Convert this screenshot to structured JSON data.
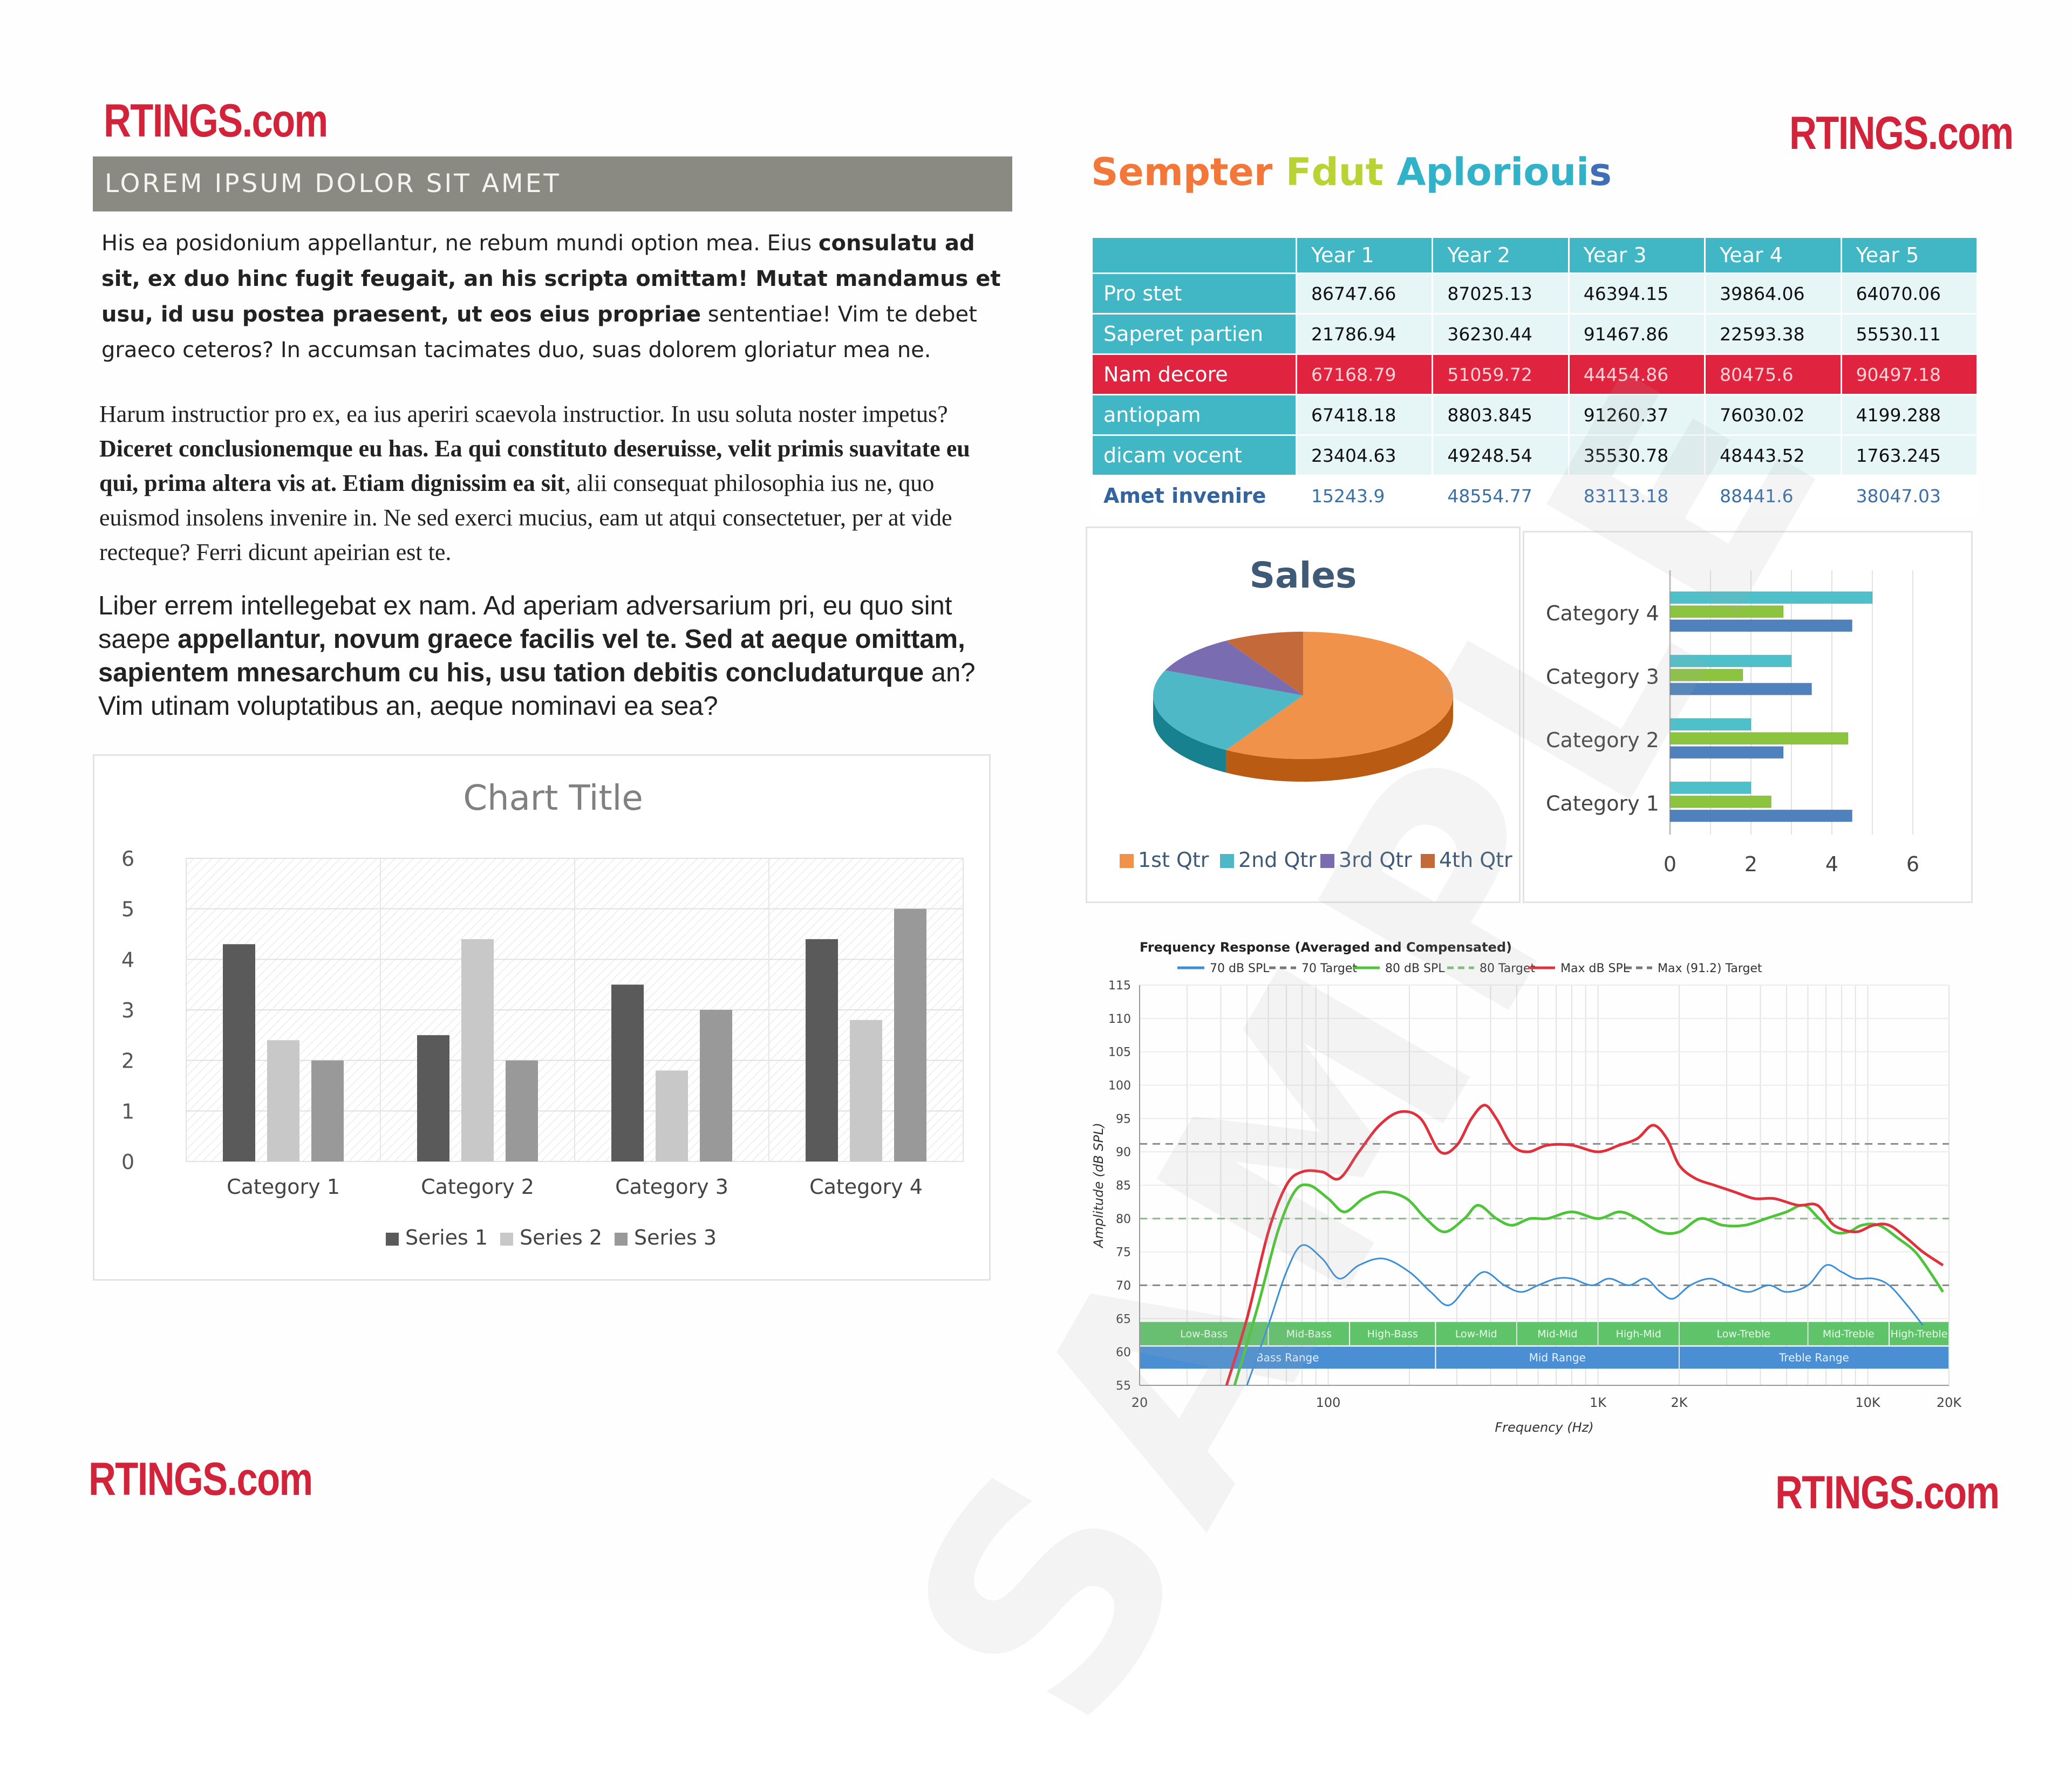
{
  "logos": {
    "text": "RTINGS.com"
  },
  "left": {
    "banner": "LOREM IPSUM DOLOR SIT AMET",
    "p1": [
      {
        "t": "His ea posidonium appellantur, ne rebum mundi option mea. Eius ",
        "b": false
      },
      {
        "t": "consulatu ad sit, ex duo hinc fugit feugait, an his scripta omittam! Mutat mandamus et usu, id usu postea praesent, ut eos eius propriae",
        "b": true
      },
      {
        "t": " sententiae! Vim te debet graeco ceteros? In accumsan tacimates duo, suas dolorem gloriatur mea ne.",
        "b": false
      }
    ],
    "p2": [
      {
        "t": "Harum instructior pro ex, ea ius aperiri scaevola instructior. In usu soluta noster impetus? ",
        "b": false
      },
      {
        "t": "Diceret conclusionemque eu has. Ea qui constituto deseruisse, velit primis suavitate eu qui, prima altera vis at. Etiam dignissim ea sit",
        "b": true
      },
      {
        "t": ", alii consequat philosophia ius ne, quo euismod insolens invenire in. Ne sed exerci mucius, eam ut atqui consectetuer, per at vide recteque? Ferri dicunt apeirian est te.",
        "b": false
      }
    ],
    "p3": [
      {
        "t": "Liber errem intellegebat ex nam. Ad aperiam adversarium pri, eu quo sint saepe ",
        "b": false
      },
      {
        "t": "appellantur, novum graece facilis vel te. Sed at aeque omittam, sapientem mnesarchum cu his, usu tation debitis concludaturque",
        "b": true
      },
      {
        "t": " an? Vim utinam voluptatibus an, aeque nominavi ea sea?",
        "b": false
      }
    ]
  },
  "watermark": "SAMPLE",
  "right": {
    "heading": [
      "Sempter ",
      "Fdut ",
      "Aplorioui",
      "s"
    ],
    "heading_colors": [
      "#f4773a",
      "#b9d234",
      "#32b2c9",
      "#3f6fb7"
    ],
    "table": {
      "columns": [
        "Year 1",
        "Year 2",
        "Year 3",
        "Year 4",
        "Year 5"
      ],
      "rows": [
        {
          "label": "Pro stet",
          "values": [
            "86747.66",
            "87025.13",
            "46394.15",
            "39864.06",
            "64070.06"
          ]
        },
        {
          "label": "Saperet partien",
          "values": [
            "21786.94",
            "36230.44",
            "91467.86",
            "22593.38",
            "55530.11"
          ]
        },
        {
          "label": "Nam decore",
          "values": [
            "67168.79",
            "51059.72",
            "44454.86",
            "80475.6",
            "90497.18"
          ]
        },
        {
          "label": "antiopam",
          "values": [
            "67418.18",
            "8803.845",
            "91260.37",
            "76030.02",
            "4199.288"
          ]
        },
        {
          "label": "dicam vocent",
          "values": [
            "23404.63",
            "49248.54",
            "35530.78",
            "48443.52",
            "1763.245"
          ]
        },
        {
          "label": "Amet invenire",
          "values": [
            "15243.9",
            "48554.77",
            "83113.18",
            "88441.6",
            "38047.03"
          ]
        }
      ]
    }
  },
  "chart_data": [
    {
      "type": "bar",
      "title": "Chart Title",
      "categories": [
        "Category 1",
        "Category 2",
        "Category 3",
        "Category 4"
      ],
      "series": [
        {
          "name": "Series 1",
          "values": [
            4.3,
            2.5,
            3.5,
            4.4
          ],
          "color": "#5a5a5a"
        },
        {
          "name": "Series 2",
          "values": [
            2.4,
            4.4,
            1.8,
            2.8
          ],
          "color": "#c8c8c8"
        },
        {
          "name": "Series 3",
          "values": [
            2.0,
            2.0,
            3.0,
            5.0
          ],
          "color": "#999999"
        }
      ],
      "ylim": [
        0,
        6
      ],
      "yticks": [
        "0",
        "1",
        "2",
        "3",
        "4",
        "5",
        "6"
      ],
      "legend": "bottom"
    },
    {
      "type": "pie",
      "title": "Sales",
      "labels": [
        "1st Qtr",
        "2nd Qtr",
        "3rd Qtr",
        "4th Qtr"
      ],
      "values": [
        8.2,
        3.2,
        1.4,
        1.2
      ],
      "colors": [
        "#f0924a",
        "#4fb8c6",
        "#7a6cb1",
        "#c46a3a"
      ],
      "legend": "bottom"
    },
    {
      "type": "bar",
      "orientation": "horizontal",
      "categories": [
        "Category 1",
        "Category 2",
        "Category 3",
        "Category 4"
      ],
      "series": [
        {
          "name": "Series 1",
          "values": [
            4.5,
            2.8,
            3.5,
            4.5
          ],
          "color": "#4f82bd"
        },
        {
          "name": "Series 2",
          "values": [
            2.5,
            4.4,
            1.8,
            2.8
          ],
          "color": "#8cc440"
        },
        {
          "name": "Series 3",
          "values": [
            2.0,
            2.0,
            3.0,
            5.0
          ],
          "color": "#4ec0ca"
        }
      ],
      "xlim": [
        0,
        6
      ],
      "xticks": [
        "0",
        "2",
        "4",
        "6"
      ]
    },
    {
      "type": "line",
      "title": "Frequency Response (Averaged and Compensated)",
      "xlabel": "Frequency (Hz)",
      "ylabel": "Amplitude (dB SPL)",
      "ylim": [
        55,
        115
      ],
      "yticks": [
        "55",
        "60",
        "65",
        "70",
        "75",
        "80",
        "85",
        "90",
        "95",
        "100",
        "105",
        "110",
        "115"
      ],
      "xticks": [
        {
          "label": "20",
          "f": 20
        },
        {
          "label": "100",
          "f": 100
        },
        {
          "label": "1K",
          "f": 1000
        },
        {
          "label": "2K",
          "f": 2000
        },
        {
          "label": "10K",
          "f": 10000
        },
        {
          "label": "20K",
          "f": 20000
        }
      ],
      "legend": [
        {
          "name": "70 dB SPL",
          "color": "#3b8fd8",
          "dash": false
        },
        {
          "name": "70 Target",
          "color": "#777777",
          "dash": true
        },
        {
          "name": "80 dB SPL",
          "color": "#4fc43a",
          "dash": false
        },
        {
          "name": "80 Target",
          "color": "#7fc07a",
          "dash": true
        },
        {
          "name": "Max dB SPL",
          "color": "#e0303c",
          "dash": false
        },
        {
          "name": "Max (91.2) Target",
          "color": "#777777",
          "dash": true
        }
      ],
      "targets": [
        {
          "y": 70,
          "color": "#8a8a8a"
        },
        {
          "y": 80,
          "color": "#8ab88a"
        },
        {
          "y": 91.2,
          "color": "#8a8a8a"
        }
      ],
      "series": [
        {
          "name": "70 dB SPL",
          "color": "#3b8fd8",
          "points": [
            [
              50,
              55
            ],
            [
              60,
              64
            ],
            [
              70,
              72
            ],
            [
              80,
              76
            ],
            [
              95,
              74
            ],
            [
              110,
              71
            ],
            [
              130,
              73
            ],
            [
              160,
              74
            ],
            [
              200,
              72
            ],
            [
              240,
              69
            ],
            [
              280,
              67
            ],
            [
              330,
              70
            ],
            [
              380,
              72
            ],
            [
              450,
              70
            ],
            [
              520,
              69
            ],
            [
              600,
              70
            ],
            [
              700,
              71
            ],
            [
              800,
              71
            ],
            [
              950,
              70
            ],
            [
              1100,
              71
            ],
            [
              1300,
              70
            ],
            [
              1500,
              71
            ],
            [
              1700,
              69
            ],
            [
              1900,
              68
            ],
            [
              2200,
              70
            ],
            [
              2600,
              71
            ],
            [
              3000,
              70
            ],
            [
              3600,
              69
            ],
            [
              4300,
              70
            ],
            [
              5000,
              69
            ],
            [
              6000,
              70
            ],
            [
              7000,
              73
            ],
            [
              8000,
              72
            ],
            [
              9000,
              71
            ],
            [
              10500,
              71
            ],
            [
              12000,
              70
            ],
            [
              14000,
              67
            ],
            [
              16000,
              64
            ]
          ]
        },
        {
          "name": "80 dB SPL",
          "color": "#4fc43a",
          "points": [
            [
              45,
              55
            ],
            [
              55,
              67
            ],
            [
              65,
              78
            ],
            [
              75,
              84
            ],
            [
              85,
              85
            ],
            [
              100,
              83
            ],
            [
              115,
              81
            ],
            [
              135,
              83
            ],
            [
              160,
              84
            ],
            [
              195,
              83
            ],
            [
              230,
              80
            ],
            [
              270,
              78
            ],
            [
              320,
              80
            ],
            [
              360,
              82
            ],
            [
              420,
              80
            ],
            [
              480,
              79
            ],
            [
              560,
              80
            ],
            [
              650,
              80
            ],
            [
              800,
              81
            ],
            [
              1000,
              80
            ],
            [
              1200,
              81
            ],
            [
              1400,
              80
            ],
            [
              1700,
              78
            ],
            [
              2000,
              78
            ],
            [
              2400,
              80
            ],
            [
              2900,
              79
            ],
            [
              3500,
              79
            ],
            [
              4200,
              80
            ],
            [
              5000,
              81
            ],
            [
              5800,
              82
            ],
            [
              6600,
              80
            ],
            [
              7500,
              78
            ],
            [
              8500,
              78
            ],
            [
              9500,
              79
            ],
            [
              11000,
              79
            ],
            [
              13000,
              77
            ],
            [
              15000,
              75
            ],
            [
              17000,
              72
            ],
            [
              19000,
              69
            ]
          ]
        },
        {
          "name": "Max dB SPL",
          "color": "#e0303c",
          "points": [
            [
              42,
              55
            ],
            [
              50,
              65
            ],
            [
              60,
              78
            ],
            [
              70,
              85
            ],
            [
              80,
              87
            ],
            [
              95,
              87
            ],
            [
              110,
              86
            ],
            [
              130,
              90
            ],
            [
              155,
              94
            ],
            [
              185,
              96
            ],
            [
              220,
              95
            ],
            [
              260,
              90
            ],
            [
              300,
              91
            ],
            [
              340,
              95
            ],
            [
              380,
              97
            ],
            [
              420,
              95
            ],
            [
              480,
              91
            ],
            [
              550,
              90
            ],
            [
              650,
              91
            ],
            [
              800,
              91
            ],
            [
              1000,
              90
            ],
            [
              1200,
              91
            ],
            [
              1400,
              92
            ],
            [
              1600,
              94
            ],
            [
              1800,
              92
            ],
            [
              2000,
              88
            ],
            [
              2300,
              86
            ],
            [
              2700,
              85
            ],
            [
              3200,
              84
            ],
            [
              3800,
              83
            ],
            [
              4500,
              83
            ],
            [
              5500,
              82
            ],
            [
              6500,
              82
            ],
            [
              7500,
              79
            ],
            [
              9000,
              78
            ],
            [
              10500,
              79
            ],
            [
              12000,
              79
            ],
            [
              14000,
              77
            ],
            [
              16000,
              75
            ],
            [
              19000,
              73
            ]
          ]
        }
      ],
      "bands_top": [
        {
          "label": "Low-Bass",
          "f0": 20,
          "f1": 60
        },
        {
          "label": "Mid-Bass",
          "f0": 60,
          "f1": 120
        },
        {
          "label": "High-Bass",
          "f0": 120,
          "f1": 250
        },
        {
          "label": "Low-Mid",
          "f0": 250,
          "f1": 500
        },
        {
          "label": "Mid-Mid",
          "f0": 500,
          "f1": 1000
        },
        {
          "label": "High-Mid",
          "f0": 1000,
          "f1": 2000
        },
        {
          "label": "Low-Treble",
          "f0": 2000,
          "f1": 6000
        },
        {
          "label": "Mid-Treble",
          "f0": 6000,
          "f1": 12000
        },
        {
          "label": "High-Treble",
          "f0": 12000,
          "f1": 20000
        }
      ],
      "bands_bottom": [
        {
          "label": "Bass Range",
          "f0": 20,
          "f1": 250
        },
        {
          "label": "Mid Range",
          "f0": 250,
          "f1": 2000
        },
        {
          "label": "Treble Range",
          "f0": 2000,
          "f1": 20000
        }
      ]
    }
  ]
}
